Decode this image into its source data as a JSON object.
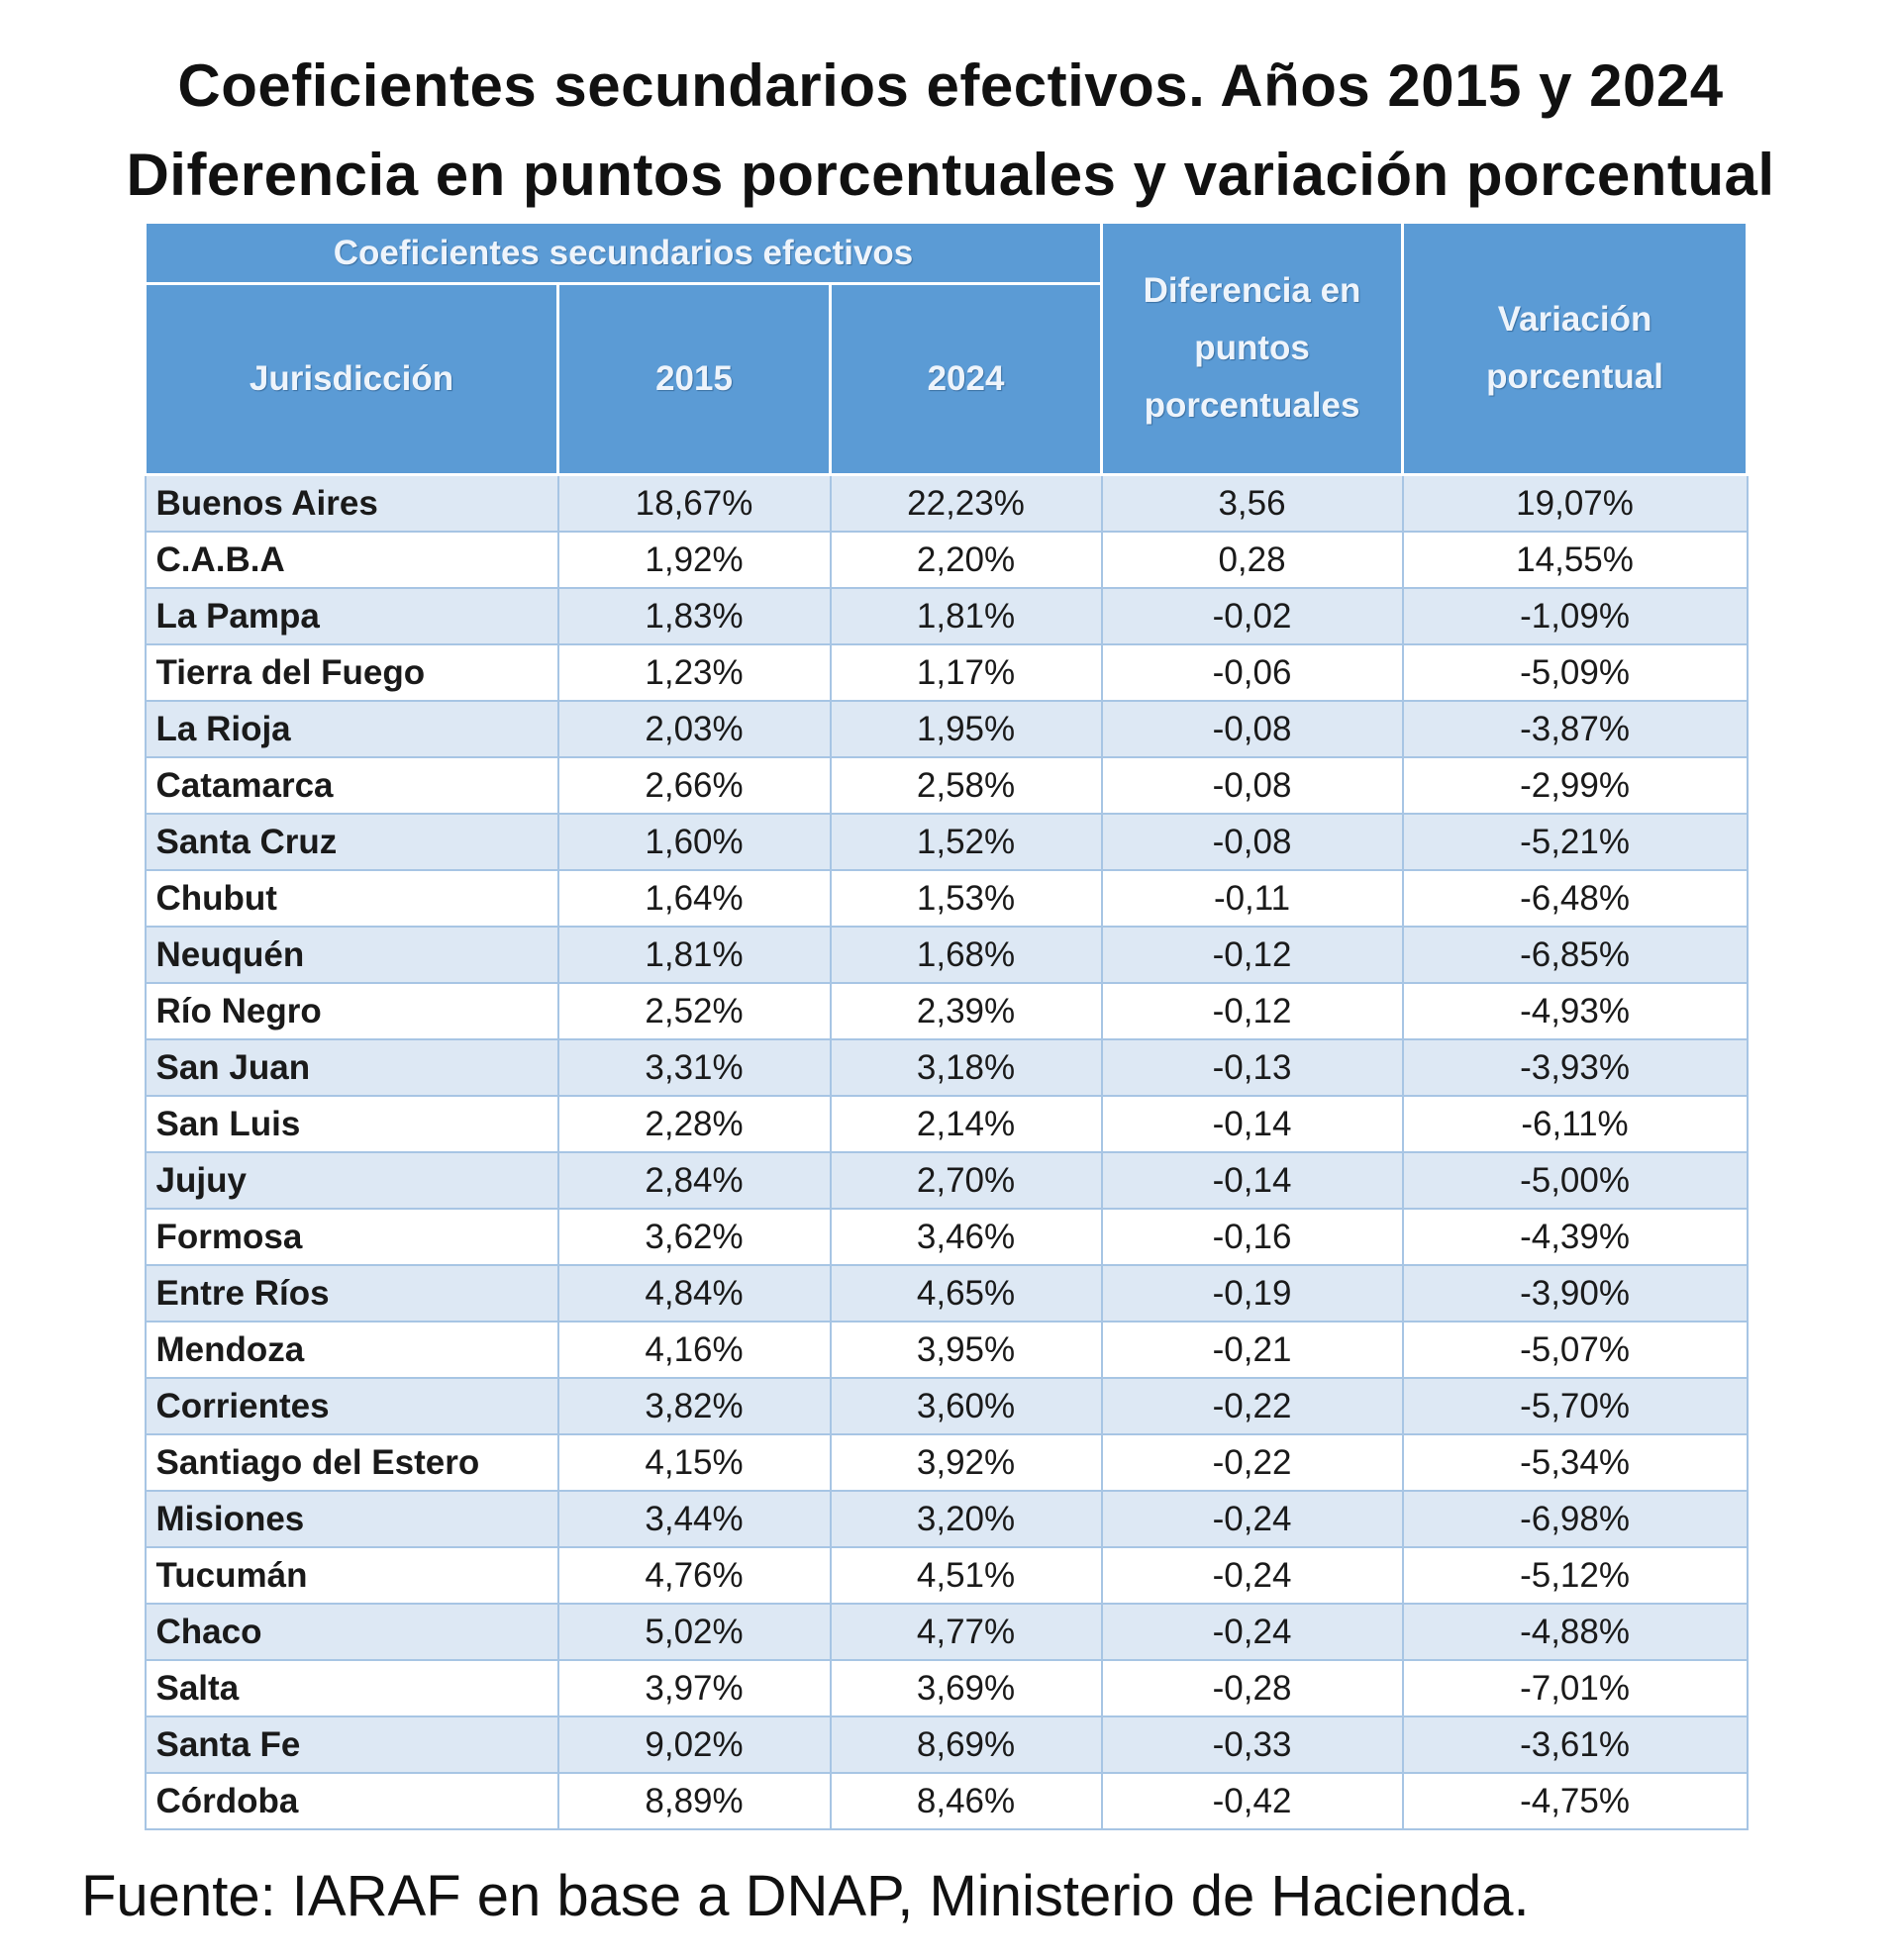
{
  "title": {
    "line1": "Coeficientes secundarios efectivos. Años 2015 y 2024",
    "line2": "Diferencia en puntos porcentuales y variación porcentual"
  },
  "table": {
    "group_header": "Coeficientes secundarios efectivos",
    "columns": {
      "jurisdiccion": "Jurisdicción",
      "y2015": "2015",
      "y2024": "2024",
      "diferencia": "Diferencia en puntos porcentuales",
      "variacion": "Variación porcentual"
    },
    "rows": [
      [
        "Buenos Aires",
        "18,67%",
        "22,23%",
        "3,56",
        "19,07%"
      ],
      [
        "C.A.B.A",
        "1,92%",
        "2,20%",
        "0,28",
        "14,55%"
      ],
      [
        "La Pampa",
        "1,83%",
        "1,81%",
        "-0,02",
        "-1,09%"
      ],
      [
        "Tierra del Fuego",
        "1,23%",
        "1,17%",
        "-0,06",
        "-5,09%"
      ],
      [
        "La Rioja",
        "2,03%",
        "1,95%",
        "-0,08",
        "-3,87%"
      ],
      [
        "Catamarca",
        "2,66%",
        "2,58%",
        "-0,08",
        "-2,99%"
      ],
      [
        "Santa Cruz",
        "1,60%",
        "1,52%",
        "-0,08",
        "-5,21%"
      ],
      [
        "Chubut",
        "1,64%",
        "1,53%",
        "-0,11",
        "-6,48%"
      ],
      [
        "Neuquén",
        "1,81%",
        "1,68%",
        "-0,12",
        "-6,85%"
      ],
      [
        "Río Negro",
        "2,52%",
        "2,39%",
        "-0,12",
        "-4,93%"
      ],
      [
        "San Juan",
        "3,31%",
        "3,18%",
        "-0,13",
        "-3,93%"
      ],
      [
        "San Luis",
        "2,28%",
        "2,14%",
        "-0,14",
        "-6,11%"
      ],
      [
        "Jujuy",
        "2,84%",
        "2,70%",
        "-0,14",
        "-5,00%"
      ],
      [
        "Formosa",
        "3,62%",
        "3,46%",
        "-0,16",
        "-4,39%"
      ],
      [
        "Entre Ríos",
        "4,84%",
        "4,65%",
        "-0,19",
        "-3,90%"
      ],
      [
        "Mendoza",
        "4,16%",
        "3,95%",
        "-0,21",
        "-5,07%"
      ],
      [
        "Corrientes",
        "3,82%",
        "3,60%",
        "-0,22",
        "-5,70%"
      ],
      [
        "Santiago del Estero",
        "4,15%",
        "3,92%",
        "-0,22",
        "-5,34%"
      ],
      [
        "Misiones",
        "3,44%",
        "3,20%",
        "-0,24",
        "-6,98%"
      ],
      [
        "Tucumán",
        "4,76%",
        "4,51%",
        "-0,24",
        "-5,12%"
      ],
      [
        "Chaco",
        "5,02%",
        "4,77%",
        "-0,24",
        "-4,88%"
      ],
      [
        "Salta",
        "3,97%",
        "3,69%",
        "-0,28",
        "-7,01%"
      ],
      [
        "Santa Fe",
        "9,02%",
        "8,69%",
        "-0,33",
        "-3,61%"
      ],
      [
        "Córdoba",
        "8,89%",
        "8,46%",
        "-0,42",
        "-4,75%"
      ]
    ]
  },
  "source": "Fuente: IARAF en base a DNAP, Ministerio de Hacienda.",
  "colors": {
    "header": "#5b9bd5",
    "row_alt": "#dde8f4",
    "border": "#a7c5e4"
  }
}
